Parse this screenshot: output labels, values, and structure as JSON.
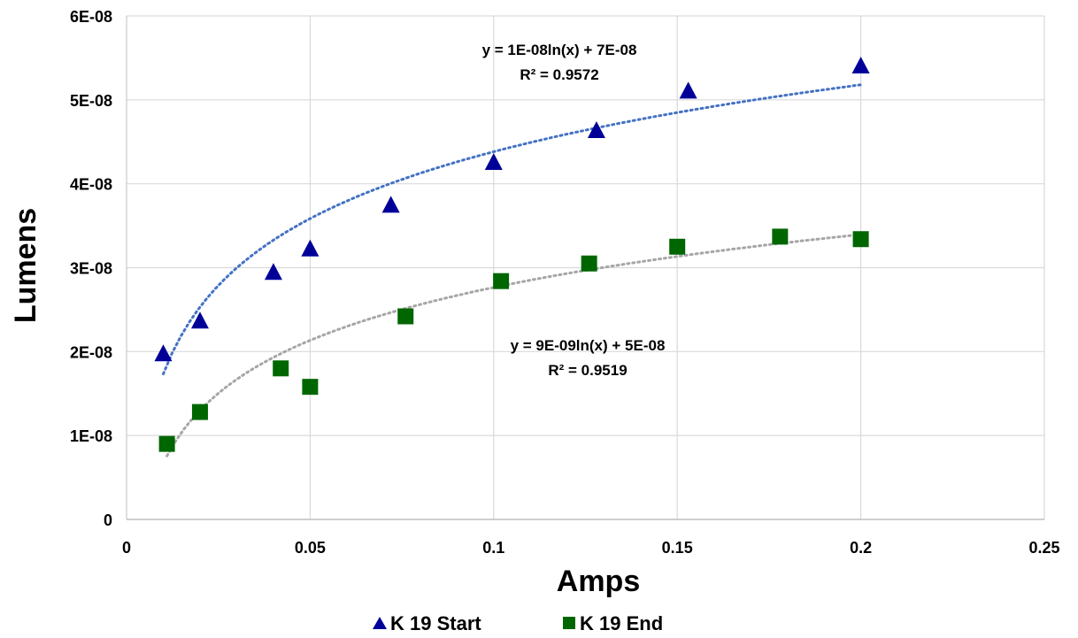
{
  "chart_data": {
    "type": "scatter",
    "xlabel": "Amps",
    "ylabel": "Lumens",
    "xlim": [
      0,
      0.25
    ],
    "ylim": [
      0,
      6e-08
    ],
    "x_ticks": [
      "0",
      "0.05",
      "0.1",
      "0.15",
      "0.2",
      "0.25"
    ],
    "y_ticks": [
      "0",
      "1E-08",
      "2E-08",
      "3E-08",
      "4E-08",
      "5E-08",
      "6E-08"
    ],
    "grid": true,
    "legend_position": "bottom",
    "series": [
      {
        "name": "K 19 Start",
        "marker": "triangle",
        "color": "#000099",
        "x": [
          0.01,
          0.02,
          0.04,
          0.05,
          0.072,
          0.1,
          0.128,
          0.153,
          0.2
        ],
        "y": [
          1.98e-08,
          2.37e-08,
          2.95e-08,
          3.23e-08,
          3.75e-08,
          4.26e-08,
          4.64e-08,
          5.11e-08,
          5.41e-08
        ],
        "trendline": {
          "type": "log",
          "a": 1.15e-08,
          "b": 7.03e-08,
          "x_range": [
            0.01,
            0.2
          ],
          "color": "#4472C4",
          "equation": "y = 1E-08ln(x) + 7E-08",
          "r_squared": "R² = 0.9572"
        }
      },
      {
        "name": "K 19 End",
        "marker": "square",
        "color": "#006600",
        "x": [
          0.011,
          0.02,
          0.042,
          0.05,
          0.076,
          0.102,
          0.126,
          0.15,
          0.178,
          0.2
        ],
        "y": [
          9e-09,
          1.28e-08,
          1.8e-08,
          1.58e-08,
          2.42e-08,
          2.84e-08,
          3.05e-08,
          3.25e-08,
          3.37e-08,
          3.34e-08
        ],
        "trendline": {
          "type": "log",
          "a": 9.1e-09,
          "b": 4.86e-08,
          "x_range": [
            0.011,
            0.2
          ],
          "color": "#A6A6A6",
          "equation": "y = 9E-09ln(x) + 5E-08",
          "r_squared": "R² = 0.9519"
        }
      }
    ]
  }
}
